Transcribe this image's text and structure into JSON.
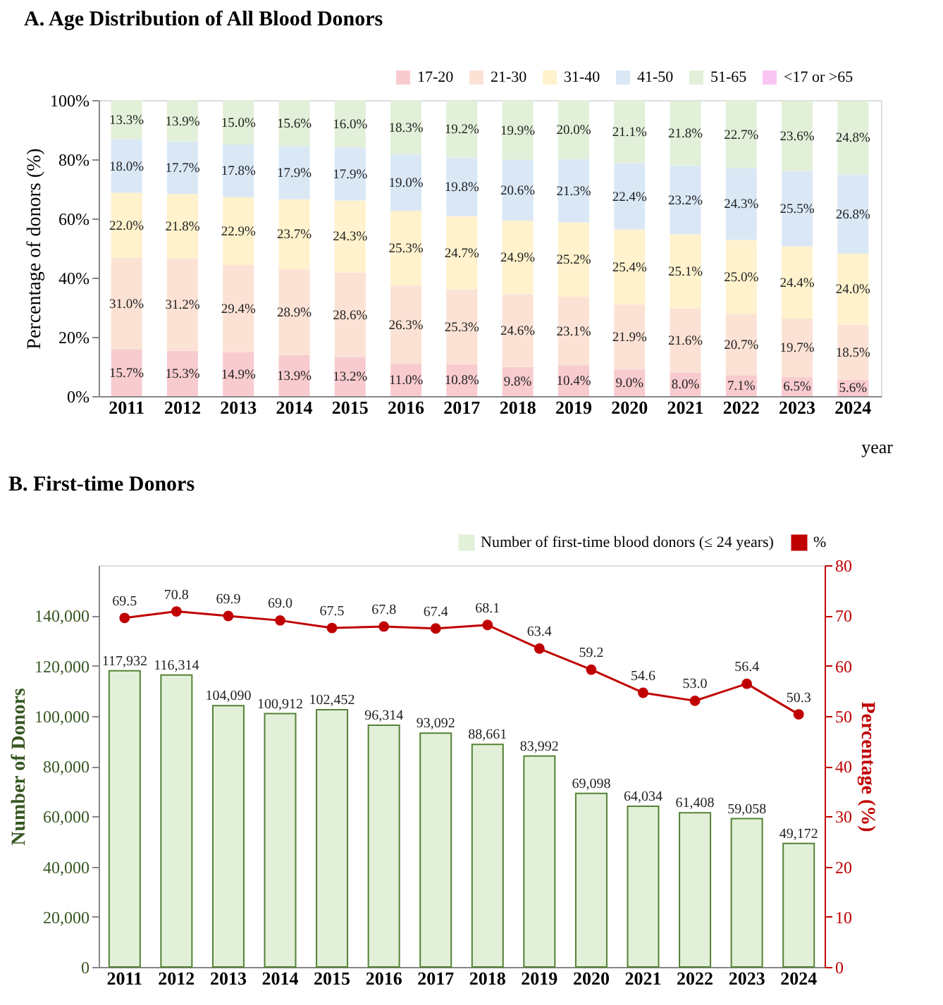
{
  "chart_data": [
    {
      "type": "bar",
      "title": "A. Age Distribution of All Blood Donors",
      "xlabel": "year",
      "ylabel": "Percentage of donors (%)",
      "stacked": true,
      "legend": "top right",
      "grid": false,
      "categories": [
        "2011",
        "2012",
        "2013",
        "2014",
        "2015",
        "2016",
        "2017",
        "2018",
        "2019",
        "2020",
        "2021",
        "2022",
        "2023",
        "2024"
      ],
      "ylim": [
        0,
        100
      ],
      "yticks": [
        {
          "value": 0,
          "label": "0%"
        },
        {
          "value": 20,
          "label": "20%"
        },
        {
          "value": 40,
          "label": "40%"
        },
        {
          "value": 60,
          "label": "60%"
        },
        {
          "value": 80,
          "label": "80%"
        },
        {
          "value": 100,
          "label": "100%"
        }
      ],
      "series": [
        {
          "name": "17-20",
          "color": "#f8cbcf",
          "values": [
            15.7,
            15.3,
            14.9,
            13.9,
            13.2,
            11.0,
            10.8,
            9.8,
            10.4,
            9.0,
            8.0,
            7.1,
            6.5,
            5.6
          ],
          "value_labels": [
            "15.7%",
            "15.3%",
            "14.9%",
            "13.9%",
            "13.2%",
            "11.0%",
            "10.8%",
            "9.8%",
            "10.4%",
            "9.0%",
            "8.0%",
            "7.1%",
            "6.5%",
            "5.6%"
          ]
        },
        {
          "name": "21-30",
          "color": "#fbe2d5",
          "values": [
            31.0,
            31.2,
            29.4,
            28.9,
            28.6,
            26.3,
            25.3,
            24.6,
            23.1,
            21.9,
            21.6,
            20.7,
            19.7,
            18.5
          ],
          "value_labels": [
            "31.0%",
            "31.2%",
            "29.4%",
            "28.9%",
            "28.6%",
            "26.3%",
            "25.3%",
            "24.6%",
            "23.1%",
            "21.9%",
            "21.6%",
            "20.7%",
            "19.7%",
            "18.5%"
          ]
        },
        {
          "name": "31-40",
          "color": "#fff2cc",
          "values": [
            22.0,
            21.8,
            22.9,
            23.7,
            24.3,
            25.3,
            24.7,
            24.9,
            25.2,
            25.4,
            25.1,
            25.0,
            24.4,
            24.0
          ],
          "value_labels": [
            "22.0%",
            "21.8%",
            "22.9%",
            "23.7%",
            "24.3%",
            "25.3%",
            "24.7%",
            "24.9%",
            "25.2%",
            "25.4%",
            "25.1%",
            "25.0%",
            "24.4%",
            "24.0%"
          ]
        },
        {
          "name": "41-50",
          "color": "#dae8f6",
          "values": [
            18.0,
            17.7,
            17.8,
            17.9,
            17.9,
            19.0,
            19.8,
            20.6,
            21.3,
            22.4,
            23.2,
            24.3,
            25.5,
            26.8
          ],
          "value_labels": [
            "18.0%",
            "17.7%",
            "17.8%",
            "17.9%",
            "17.9%",
            "19.0%",
            "19.8%",
            "20.6%",
            "21.3%",
            "22.4%",
            "23.2%",
            "24.3%",
            "25.5%",
            "26.8%"
          ]
        },
        {
          "name": "51-65",
          "color": "#e2f0d9",
          "values": [
            13.3,
            13.9,
            15.0,
            15.6,
            16.0,
            18.3,
            19.2,
            19.9,
            20.0,
            21.1,
            21.8,
            22.7,
            23.6,
            24.8
          ],
          "value_labels": [
            "13.3%",
            "13.9%",
            "15.0%",
            "15.6%",
            "16.0%",
            "18.3%",
            "19.2%",
            "19.9%",
            "20.0%",
            "21.1%",
            "21.8%",
            "22.7%",
            "23.6%",
            "24.8%"
          ]
        },
        {
          "name": "<17 or >65",
          "color": "#f9c6f4",
          "values": [
            null,
            null,
            null,
            null,
            null,
            null,
            null,
            null,
            null,
            null,
            null,
            null,
            null,
            null
          ],
          "value_labels": [
            null,
            null,
            null,
            null,
            null,
            null,
            null,
            null,
            null,
            null,
            null,
            null,
            null,
            null
          ]
        }
      ]
    },
    {
      "type": "bar",
      "title": "B. First-time Donors",
      "ylabel": "Number of Donors",
      "y2label": "Percentage (%)",
      "legend": "top right",
      "grid": false,
      "categories": [
        "2011",
        "2012",
        "2013",
        "2014",
        "2015",
        "2016",
        "2017",
        "2018",
        "2019",
        "2020",
        "2021",
        "2022",
        "2023",
        "2024"
      ],
      "ylim": [
        0,
        160000
      ],
      "yticks": [
        0,
        {
          "value": 20000,
          "label": "20,000"
        },
        {
          "value": 40000,
          "label": "40,000"
        },
        {
          "value": 60000,
          "label": "60,000"
        },
        {
          "value": 80000,
          "label": "80,000"
        },
        {
          "value": 100000,
          "label": "100,000"
        },
        {
          "value": 120000,
          "label": "120,000"
        },
        {
          "value": 140000,
          "label": "140,000"
        }
      ],
      "y2lim": [
        0,
        80
      ],
      "y2ticks": [
        0,
        10,
        20,
        30,
        40,
        50,
        60,
        70,
        80
      ],
      "series": [
        {
          "name": "Number of first-time blood donors (≤ 24 years)",
          "type": "bar",
          "color": "#e2f0d9",
          "values": [
            117932,
            116314,
            104090,
            100912,
            102452,
            96314,
            93092,
            88661,
            83992,
            69098,
            64034,
            61408,
            59058,
            49172
          ],
          "value_labels": [
            "117,932",
            "116,314",
            "104,090",
            "100,912",
            "102,452",
            "96,314",
            "93,092",
            "88,661",
            "83,992",
            "69,098",
            "64,034",
            "61,408",
            "59,058",
            "49,172"
          ]
        },
        {
          "name": "%",
          "type": "line",
          "axis": "y2",
          "marker": "circle",
          "color": "#c00000",
          "values": [
            69.5,
            70.8,
            69.9,
            69.0,
            67.5,
            67.8,
            67.4,
            68.1,
            63.4,
            59.2,
            54.6,
            53.0,
            56.4,
            50.3
          ],
          "value_labels": [
            "69.5",
            "70.8",
            "69.9",
            "69.0",
            "67.5",
            "67.8",
            "67.4",
            "68.1",
            "63.4",
            "59.2",
            "54.6",
            "53.0",
            "56.4",
            "50.3"
          ]
        }
      ]
    }
  ]
}
